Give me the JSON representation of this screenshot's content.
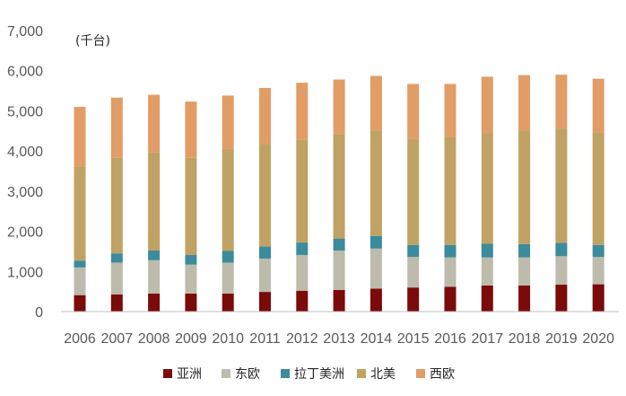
{
  "chart_data": {
    "type": "bar",
    "stacked": true,
    "unit_label": "(千台)",
    "categories": [
      "2006",
      "2007",
      "2008",
      "2009",
      "2010",
      "2011",
      "2012",
      "2013",
      "2014",
      "2015",
      "2016",
      "2017",
      "2018",
      "2019",
      "2020"
    ],
    "y_ticks": [
      "0",
      "1,000",
      "2,000",
      "3,000",
      "4,000",
      "5,000",
      "6,000",
      "7,000"
    ],
    "ylim": [
      0,
      7000
    ],
    "grid": false,
    "legend_position": "bottom",
    "series": [
      {
        "name": "亚洲",
        "color": "#7b0a0a",
        "values": [
          410,
          430,
          450,
          450,
          450,
          490,
          520,
          540,
          570,
          600,
          620,
          650,
          650,
          670,
          680
        ]
      },
      {
        "name": "东欧",
        "color": "#bdbbab",
        "values": [
          690,
          790,
          830,
          720,
          770,
          830,
          890,
          980,
          1000,
          760,
          730,
          700,
          700,
          710,
          680
        ]
      },
      {
        "name": "拉丁美洲",
        "color": "#3b8b9c",
        "values": [
          170,
          230,
          240,
          240,
          290,
          300,
          310,
          300,
          310,
          300,
          310,
          340,
          330,
          330,
          300
        ]
      },
      {
        "name": "北美",
        "color": "#c0a265",
        "values": [
          2350,
          2380,
          2440,
          2420,
          2540,
          2560,
          2560,
          2600,
          2630,
          2650,
          2680,
          2750,
          2830,
          2850,
          2800
        ]
      },
      {
        "name": "西欧",
        "color": "#e19d65",
        "values": [
          1480,
          1500,
          1440,
          1400,
          1330,
          1390,
          1420,
          1360,
          1360,
          1360,
          1330,
          1410,
          1380,
          1340,
          1340
        ]
      }
    ]
  }
}
